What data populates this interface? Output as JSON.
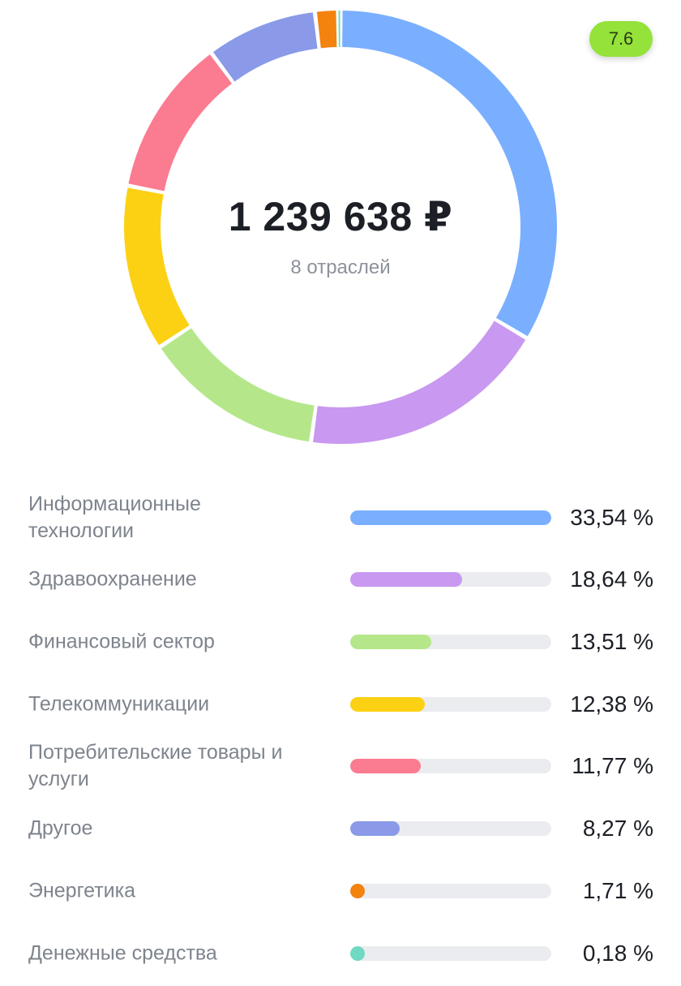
{
  "score_badge": "7.6",
  "center": {
    "total": "1 239 638 ₽",
    "subtitle": "8 отраслей"
  },
  "chart_data": {
    "type": "pie",
    "style": "donut",
    "categories": [
      "Информационные технологии",
      "Здравоохранение",
      "Финансовый сектор",
      "Телекоммуникации",
      "Потребительские товары и услуги",
      "Другое",
      "Энергетика",
      "Денежные средства"
    ],
    "values": [
      33.54,
      18.64,
      13.51,
      12.38,
      11.77,
      8.27,
      1.71,
      0.18
    ],
    "colors": [
      "#7aafff",
      "#c998f0",
      "#b5e78a",
      "#fcd114",
      "#fb7b90",
      "#8a9ae8",
      "#f3820f",
      "#6fd9c3"
    ],
    "labels": [
      "33,54 %",
      "18,64 %",
      "13,51 %",
      "12,38 %",
      "11,77 %",
      "8,27 %",
      "1,71 %",
      "0,18 %"
    ]
  }
}
